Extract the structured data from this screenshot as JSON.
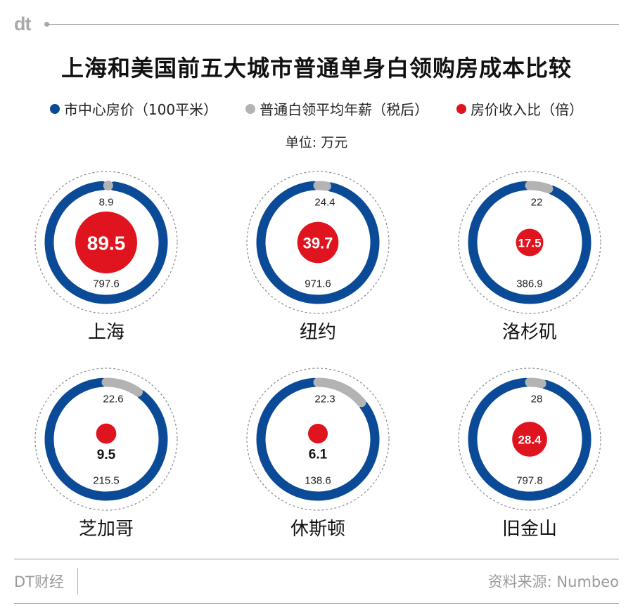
{
  "header": {
    "logo": "dt"
  },
  "title": "上海和美国前五大城市普通单身白领购房成本比较",
  "legend": [
    {
      "label": "市中心房价（100平米）",
      "color": "#0a4a96"
    },
    {
      "label": "普通白领平均年薪（税后）",
      "color": "#b3b3b3"
    },
    {
      "label": "房价收入比（倍）",
      "color": "#e0141e"
    }
  ],
  "unit": "单位: 万元",
  "colors": {
    "price": "#0a4a96",
    "salary": "#b3b3b3",
    "ratio": "#e0141e",
    "dashed": "#8a8a8a"
  },
  "chart_data": {
    "type": "radial-ring",
    "title": "上海和美国前五大城市普通单身白领购房成本比较",
    "unit": "单位: 万元",
    "series": [
      {
        "name": "市中心房价（100平米）"
      },
      {
        "name": "普通白领平均年薪（税后）"
      },
      {
        "name": "房价收入比（倍）"
      }
    ],
    "cities": [
      {
        "city": "上海",
        "price": 797.6,
        "salary": 8.9,
        "ratio": 89.5
      },
      {
        "city": "纽约",
        "price": 971.6,
        "salary": 24.4,
        "ratio": 39.7
      },
      {
        "city": "洛杉矶",
        "price": 386.9,
        "salary": 22,
        "ratio": 17.5
      },
      {
        "city": "芝加哥",
        "price": 215.5,
        "salary": 22.6,
        "ratio": 9.5
      },
      {
        "city": "休斯顿",
        "price": 138.6,
        "salary": 22.3,
        "ratio": 6.1
      },
      {
        "city": "旧金山",
        "price": 797.8,
        "salary": 28,
        "ratio": 28.4
      }
    ]
  },
  "footer": {
    "left": "DT财经",
    "right": "资料来源: Numbeo"
  }
}
